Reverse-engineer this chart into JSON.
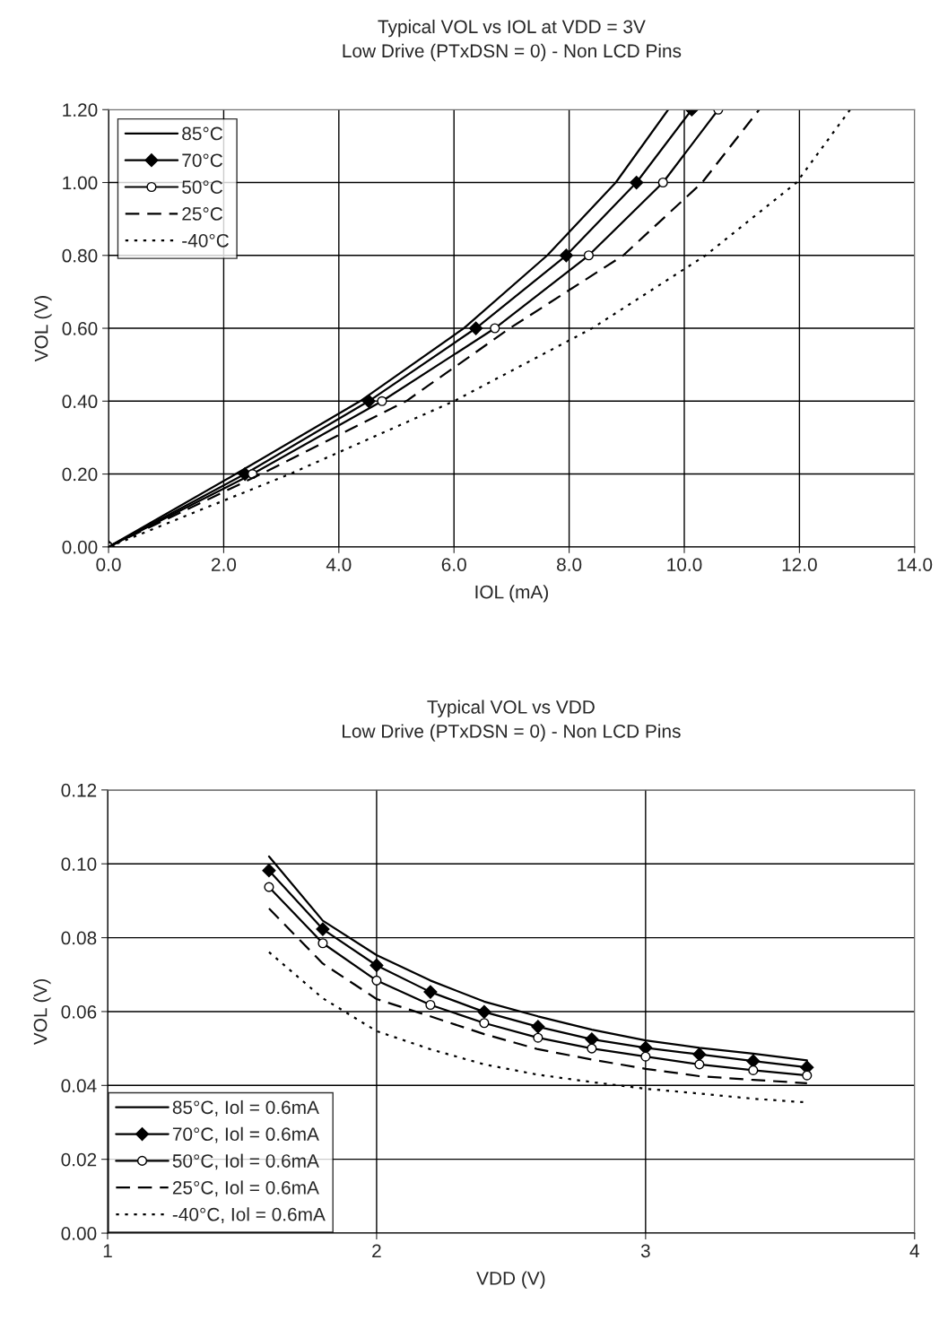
{
  "chart_data": [
    {
      "type": "line",
      "title": "Typical VOL vs IOL at VDD = 3V",
      "subtitle": "Low Drive (PTxDSN = 0) - Non LCD Pins",
      "xlabel": "IOL (mA)",
      "ylabel": "VOL (V)",
      "xlim": [
        0,
        14
      ],
      "ylim": [
        0,
        1.2
      ],
      "xticks": [
        {
          "value": 0,
          "label": "0.0"
        },
        {
          "value": 2,
          "label": "2.0"
        },
        {
          "value": 4,
          "label": "4.0"
        },
        {
          "value": 6,
          "label": "6.0"
        },
        {
          "value": 8,
          "label": "8.0"
        },
        {
          "value": 10,
          "label": "10.0"
        },
        {
          "value": 12,
          "label": "12.0"
        },
        {
          "value": 14,
          "label": "14.0"
        }
      ],
      "yticks": [
        {
          "value": 0,
          "label": "0.00"
        },
        {
          "value": 0.2,
          "label": "0.20"
        },
        {
          "value": 0.4,
          "label": "0.40"
        },
        {
          "value": 0.6,
          "label": "0.60"
        },
        {
          "value": 0.8,
          "label": "0.80"
        },
        {
          "value": 1.0,
          "label": "1.00"
        },
        {
          "value": 1.2,
          "label": "1.20"
        }
      ],
      "grid": true,
      "legend": "top left",
      "series": [
        {
          "name": "85°C",
          "color": "#000000",
          "line_style": "solid",
          "marker": "none",
          "x": [
            0,
            2.21,
            4.37,
            6.17,
            7.62,
            8.81,
            9.72
          ],
          "values": [
            0,
            0.2,
            0.4,
            0.6,
            0.8,
            1.0,
            1.2
          ]
        },
        {
          "name": "70°C",
          "color": "#000000",
          "line_style": "solid",
          "marker": "diamond",
          "x": [
            0,
            2.37,
            4.52,
            6.38,
            7.95,
            9.17,
            10.13
          ],
          "values": [
            0,
            0.2,
            0.4,
            0.6,
            0.8,
            1.0,
            1.2
          ]
        },
        {
          "name": "50°C",
          "color": "#000000",
          "line_style": "solid",
          "marker": "circle",
          "x": [
            0,
            2.5,
            4.75,
            6.71,
            8.34,
            9.63,
            10.59
          ],
          "values": [
            0,
            0.2,
            0.4,
            0.6,
            0.8,
            1.0,
            1.2
          ]
        },
        {
          "name": "25°C",
          "color": "#000000",
          "line_style": "dashed",
          "marker": "none",
          "x": [
            0,
            2.65,
            5.17,
            6.97,
            8.94,
            10.31,
            11.3
          ],
          "values": [
            0,
            0.2,
            0.4,
            0.6,
            0.8,
            1.0,
            1.2
          ]
        },
        {
          "name": "-40°C",
          "color": "#000000",
          "line_style": "dotted",
          "marker": "none",
          "x": [
            0,
            3.15,
            6.0,
            8.4,
            10.37,
            11.95,
            12.88
          ],
          "values": [
            0,
            0.2,
            0.4,
            0.6,
            0.8,
            1.0,
            1.2
          ]
        }
      ]
    },
    {
      "type": "line",
      "title": "Typical VOL vs VDD",
      "subtitle": "Low Drive (PTxDSN = 0) - Non LCD Pins",
      "xlabel": "VDD (V)",
      "ylabel": "VOL (V)",
      "xlim": [
        1,
        4
      ],
      "ylim": [
        0,
        0.12
      ],
      "xticks": [
        1,
        2,
        3,
        4
      ],
      "yticks": [
        {
          "value": 0,
          "label": "0.00"
        },
        {
          "value": 0.02,
          "label": "0.02"
        },
        {
          "value": 0.04,
          "label": "0.04"
        },
        {
          "value": 0.06,
          "label": "0.06"
        },
        {
          "value": 0.08,
          "label": "0.08"
        },
        {
          "value": 0.1,
          "label": "0.10"
        },
        {
          "value": 0.12,
          "label": "0.12"
        }
      ],
      "grid": true,
      "legend": "bottom left",
      "x": [
        1.6,
        1.8,
        2.0,
        2.2,
        2.4,
        2.6,
        2.8,
        3.0,
        3.2,
        3.4,
        3.6
      ],
      "series": [
        {
          "name": "85°C, Iol = 0.6mA",
          "color": "#000000",
          "line_style": "solid",
          "marker": "none",
          "values": [
            0.102,
            0.0846,
            0.0753,
            0.0684,
            0.0627,
            0.0587,
            0.0551,
            0.0522,
            0.0502,
            0.0486,
            0.0468
          ]
        },
        {
          "name": "70°C, Iol = 0.6mA",
          "color": "#000000",
          "line_style": "solid",
          "marker": "diamond",
          "values": [
            0.0982,
            0.0823,
            0.0725,
            0.0653,
            0.0599,
            0.0559,
            0.0525,
            0.0502,
            0.0484,
            0.0466,
            0.0449
          ]
        },
        {
          "name": "50°C, Iol = 0.6mA",
          "color": "#000000",
          "line_style": "solid",
          "marker": "circle",
          "values": [
            0.0937,
            0.0785,
            0.0684,
            0.0618,
            0.0569,
            0.0529,
            0.05,
            0.0478,
            0.0457,
            0.0441,
            0.0427
          ]
        },
        {
          "name": "25°C, Iol = 0.6mA",
          "color": "#000000",
          "line_style": "dashed",
          "marker": "none",
          "values": [
            0.0879,
            0.073,
            0.0634,
            0.0587,
            0.0539,
            0.0498,
            0.047,
            0.0445,
            0.0425,
            0.0415,
            0.0406
          ]
        },
        {
          "name": "-40°C, Iol = 0.6mA",
          "color": "#000000",
          "line_style": "dotted",
          "marker": "none",
          "values": [
            0.0761,
            0.0636,
            0.0547,
            0.0498,
            0.0457,
            0.0429,
            0.0409,
            0.0391,
            0.0378,
            0.0364,
            0.0354
          ]
        }
      ]
    }
  ]
}
